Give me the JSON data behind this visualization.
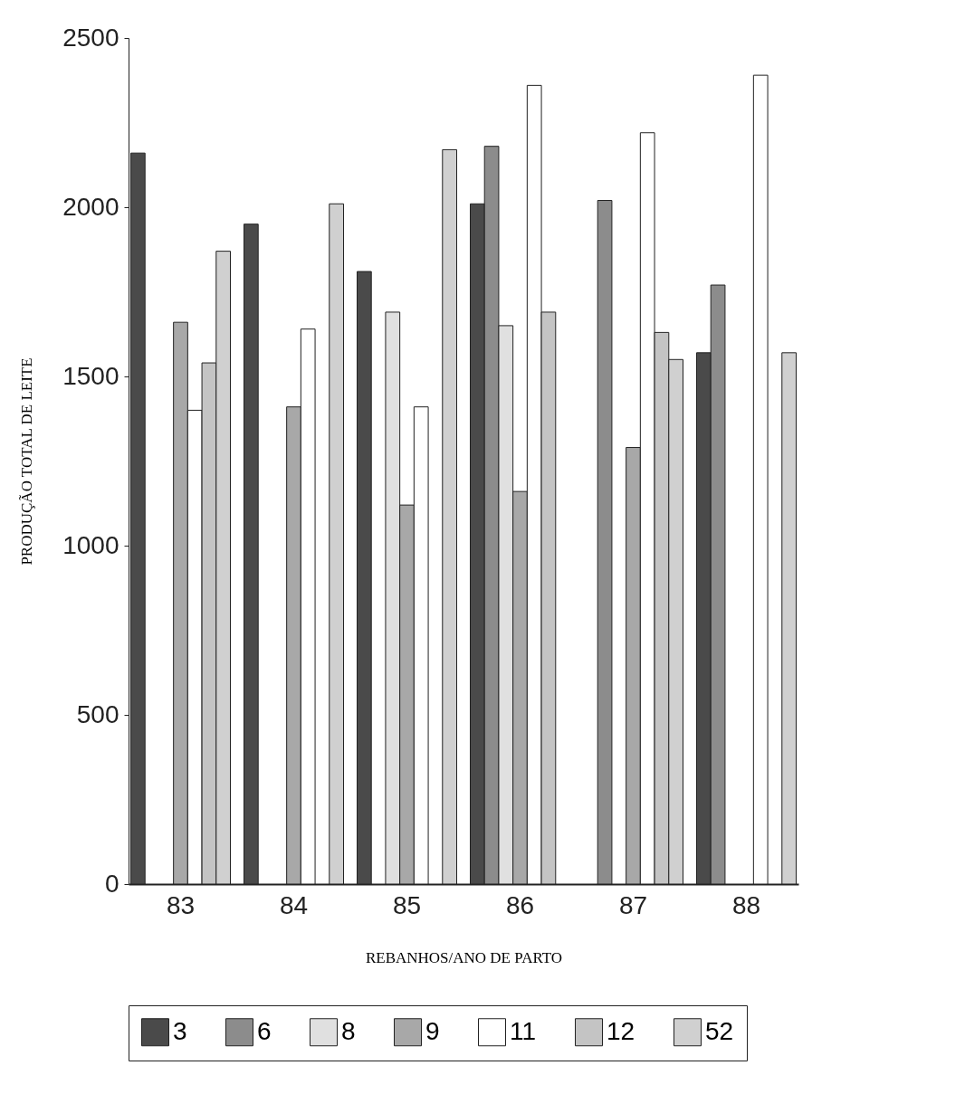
{
  "chart_data": {
    "type": "bar",
    "xlabel": "REBANHOS/ANO DE PARTO",
    "ylabel": "PRODUÇÃO TOTAL DE LEITE",
    "categories": [
      "83",
      "84",
      "85",
      "86",
      "87",
      "88"
    ],
    "series": [
      {
        "name": "3",
        "color": "#4a4a4a",
        "values": [
          2160,
          1950,
          1810,
          2010,
          null,
          1570
        ]
      },
      {
        "name": "6",
        "color": "#8c8c8c",
        "values": [
          null,
          null,
          null,
          2180,
          2020,
          1770
        ]
      },
      {
        "name": "8",
        "color": "#e0e0e0",
        "values": [
          null,
          null,
          1690,
          1650,
          null,
          null
        ]
      },
      {
        "name": "9",
        "color": "#a8a8a8",
        "values": [
          1660,
          1410,
          1120,
          1160,
          1290,
          null
        ]
      },
      {
        "name": "11",
        "color": "#ffffff",
        "values": [
          1400,
          1640,
          1410,
          2360,
          2220,
          2390
        ]
      },
      {
        "name": "12",
        "color": "#c4c4c4",
        "values": [
          1540,
          null,
          null,
          1690,
          1630,
          null
        ]
      },
      {
        "name": "52",
        "color": "#d0d0d0",
        "values": [
          1870,
          2010,
          2170,
          null,
          1550,
          1570
        ]
      }
    ],
    "ylim": [
      0,
      2500
    ],
    "yticks": [
      0,
      500,
      1000,
      1500,
      2000,
      2500
    ],
    "grid": false,
    "legend": "bottom"
  }
}
